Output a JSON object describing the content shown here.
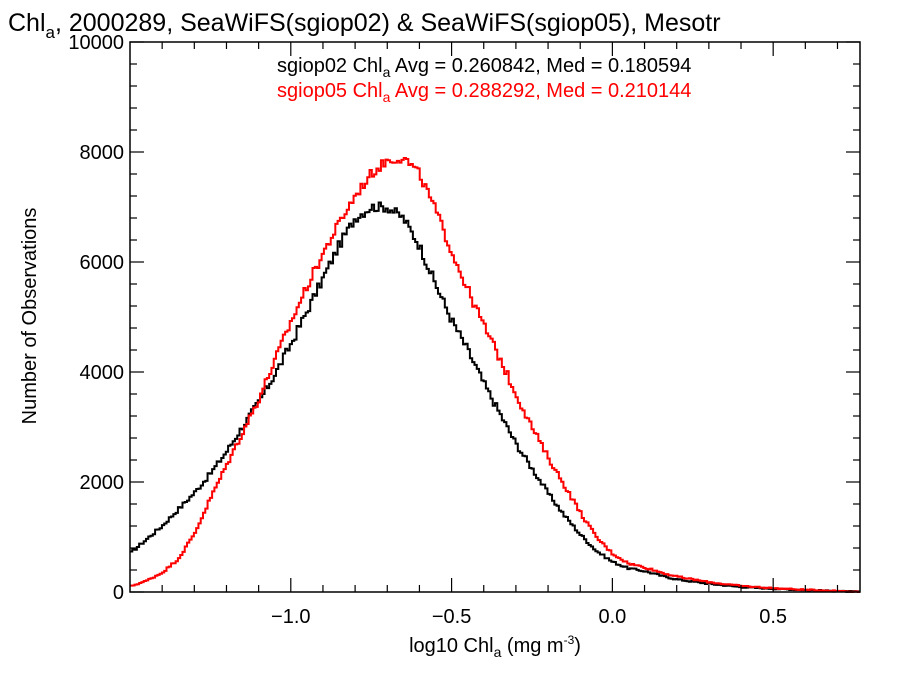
{
  "chart_data": {
    "type": "line",
    "title": {
      "main": "Chl",
      "sub": "a",
      "rest": ", 2000289, SeaWiFS(sgiop02) & SeaWiFS(sgiop05), Mesotr"
    },
    "xlabel": {
      "main": "log10 Chl",
      "sub": "a",
      "units": " (mg m",
      "sup": "-3",
      "close": ")"
    },
    "ylabel": "Number of Observations",
    "xlim": [
      -1.5,
      0.77
    ],
    "ylim": [
      0,
      10000
    ],
    "x_ticks": [
      {
        "value": -1.0,
        "label": "−1.0"
      },
      {
        "value": -0.5,
        "label": "−0.5"
      },
      {
        "value": 0.0,
        "label": "0.0"
      },
      {
        "value": 0.5,
        "label": "0.5"
      }
    ],
    "y_ticks": [
      {
        "value": 0,
        "label": "0"
      },
      {
        "value": 2000,
        "label": "2000"
      },
      {
        "value": 4000,
        "label": "4000"
      },
      {
        "value": 6000,
        "label": "6000"
      },
      {
        "value": 8000,
        "label": "8000"
      },
      {
        "value": 10000,
        "label": "10000"
      }
    ],
    "grid": false,
    "annotations": [
      {
        "pre": "sgiop02 Chl",
        "sub": "a",
        "post": " Avg = 0.260842, Med = 0.180594",
        "color": "#000000"
      },
      {
        "pre": "sgiop05 Chl",
        "sub": "a",
        "post": " Avg = 0.288292, Med = 0.210144",
        "color": "#ff0000"
      }
    ],
    "series": [
      {
        "color": "#000000",
        "step": true,
        "x": [
          -1.5,
          -1.45,
          -1.4,
          -1.35,
          -1.3,
          -1.25,
          -1.2,
          -1.15,
          -1.1,
          -1.05,
          -1.0,
          -0.95,
          -0.9,
          -0.85,
          -0.8,
          -0.75,
          -0.7,
          -0.65,
          -0.6,
          -0.55,
          -0.5,
          -0.45,
          -0.4,
          -0.35,
          -0.3,
          -0.25,
          -0.2,
          -0.15,
          -0.1,
          -0.05,
          0.0,
          0.05,
          0.1,
          0.15,
          0.2,
          0.3,
          0.4,
          0.5,
          0.6,
          0.7,
          0.77
        ],
        "y": [
          700,
          950,
          1200,
          1500,
          1800,
          2150,
          2550,
          3000,
          3450,
          3950,
          4500,
          5100,
          5700,
          6300,
          6800,
          7000,
          7000,
          6800,
          6300,
          5600,
          4950,
          4400,
          3800,
          3250,
          2700,
          2250,
          1800,
          1400,
          1050,
          750,
          550,
          430,
          380,
          300,
          230,
          150,
          90,
          60,
          35,
          15,
          5
        ]
      },
      {
        "color": "#ff0000",
        "step": true,
        "x": [
          -1.5,
          -1.45,
          -1.4,
          -1.35,
          -1.3,
          -1.25,
          -1.2,
          -1.15,
          -1.1,
          -1.05,
          -1.0,
          -0.95,
          -0.9,
          -0.85,
          -0.8,
          -0.75,
          -0.7,
          -0.65,
          -0.6,
          -0.55,
          -0.5,
          -0.45,
          -0.4,
          -0.35,
          -0.3,
          -0.25,
          -0.2,
          -0.15,
          -0.1,
          -0.05,
          0.0,
          0.05,
          0.1,
          0.15,
          0.2,
          0.3,
          0.4,
          0.5,
          0.6,
          0.7,
          0.77
        ],
        "y": [
          100,
          200,
          350,
          600,
          1050,
          1700,
          2300,
          2900,
          3500,
          4200,
          4900,
          5550,
          6150,
          6700,
          7200,
          7600,
          7850,
          7900,
          7600,
          6950,
          6200,
          5500,
          4850,
          4250,
          3600,
          3000,
          2450,
          1950,
          1450,
          1000,
          700,
          520,
          450,
          360,
          280,
          180,
          110,
          70,
          40,
          20,
          5
        ]
      }
    ]
  }
}
